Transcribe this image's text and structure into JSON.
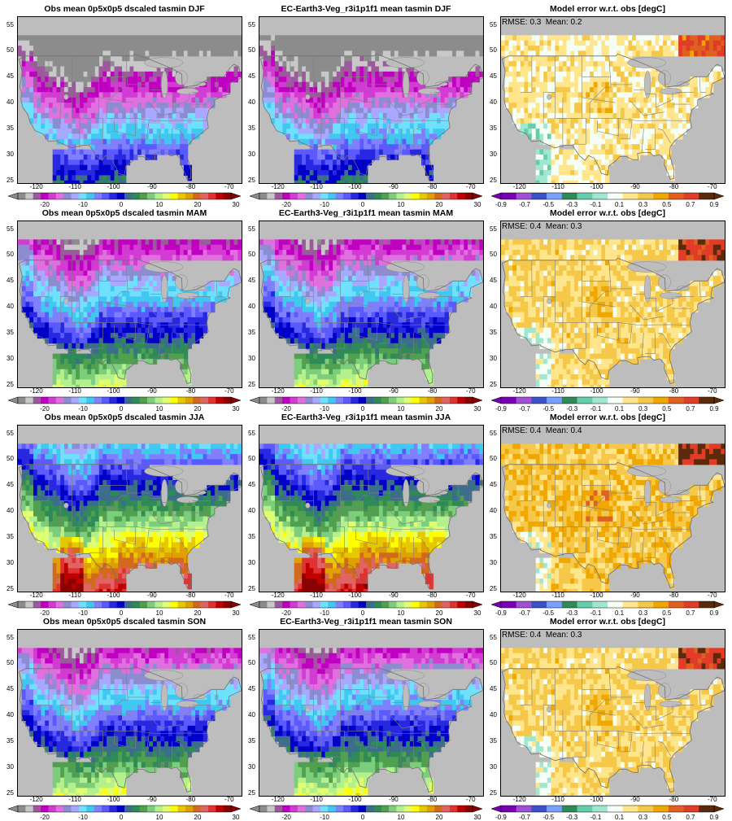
{
  "panels": [
    {
      "title": "Obs mean 0p5x0p5 dscaled tasmin DJF",
      "kind": "abs",
      "season": "DJF",
      "stat": ""
    },
    {
      "title": "EC-Earth3-Veg_r3i1p1f1 mean tasmin DJF",
      "kind": "abs",
      "season": "DJF",
      "stat": ""
    },
    {
      "title": "Model error w.r.t. obs [degC]",
      "kind": "err",
      "season": "DJF",
      "stat": "RMSE: 0.3  Mean: 0.2"
    },
    {
      "title": "Obs mean 0p5x0p5 dscaled tasmin MAM",
      "kind": "abs",
      "season": "MAM",
      "stat": ""
    },
    {
      "title": "EC-Earth3-Veg_r3i1p1f1 mean tasmin MAM",
      "kind": "abs",
      "season": "MAM",
      "stat": ""
    },
    {
      "title": "Model error w.r.t. obs [degC]",
      "kind": "err",
      "season": "MAM",
      "stat": "RMSE: 0.4  Mean: 0.3"
    },
    {
      "title": "Obs mean 0p5x0p5 dscaled tasmin JJA",
      "kind": "abs",
      "season": "JJA",
      "stat": ""
    },
    {
      "title": "EC-Earth3-Veg_r3i1p1f1 mean tasmin JJA",
      "kind": "abs",
      "season": "JJA",
      "stat": ""
    },
    {
      "title": "Model error w.r.t. obs [degC]",
      "kind": "err",
      "season": "JJA",
      "stat": "RMSE: 0.4  Mean: 0.4"
    },
    {
      "title": "Obs mean 0p5x0p5 dscaled tasmin SON",
      "kind": "abs",
      "season": "SON",
      "stat": ""
    },
    {
      "title": "EC-Earth3-Veg_r3i1p1f1 mean tasmin SON",
      "kind": "abs",
      "season": "SON",
      "stat": ""
    },
    {
      "title": "Model error w.r.t. obs [degC]",
      "kind": "err",
      "season": "SON",
      "stat": "RMSE: 0.4  Mean: 0.3"
    }
  ],
  "axes": {
    "lon_ticks": [
      "-120",
      "-110",
      "-100",
      "-90",
      "-80",
      "-70"
    ],
    "lat_ticks": [
      "55",
      "50",
      "45",
      "40",
      "35",
      "30",
      "25"
    ]
  },
  "colorbars": {
    "abs": {
      "labels": [
        "-20",
        "-10",
        "0",
        "10",
        "20",
        "30"
      ],
      "colors": [
        "#8c8c8c",
        "#c8c8c8",
        "#9c5a9c",
        "#c000c0",
        "#d23cd2",
        "#e070e0",
        "#8c8cd0",
        "#a8a8ff",
        "#70e0ff",
        "#40c8f0",
        "#8080ff",
        "#5a5aff",
        "#2828e0",
        "#0000c8",
        "#3c6e8c",
        "#2e8b57",
        "#50a050",
        "#7ccd7c",
        "#b4f08c",
        "#e0ff70",
        "#ffff00",
        "#e6c800",
        "#e0a000",
        "#d2691e",
        "#e06464",
        "#e03232",
        "#c00000",
        "#8b0000"
      ]
    },
    "err": {
      "labels": [
        "-0.9",
        "-0.7",
        "-0.5",
        "-0.3",
        "-0.1",
        "0.1",
        "0.3",
        "0.5",
        "0.7",
        "0.9"
      ],
      "colors": [
        "#7a00b4",
        "#a050d2",
        "#3c50c8",
        "#78a0ff",
        "#2e8b57",
        "#66cdaa",
        "#a0e6d0",
        "#f5fff5",
        "#ffe68c",
        "#f5c84a",
        "#f0a800",
        "#e06020",
        "#e03c28",
        "#5a2a0a"
      ]
    }
  }
}
